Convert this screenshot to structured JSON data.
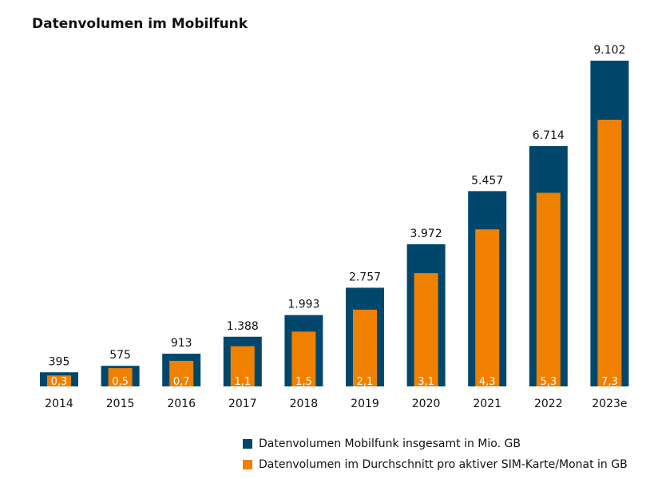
{
  "chart_data": {
    "type": "bar",
    "title": "Datenvolumen im Mobilfunk",
    "categories": [
      "2014",
      "2015",
      "2016",
      "2017",
      "2018",
      "2019",
      "2020",
      "2021",
      "2022",
      "2023e"
    ],
    "series": [
      {
        "name": "Datenvolumen Mobilfunk insgesamt in Mio. GB",
        "values": [
          395,
          575,
          913,
          1388,
          1993,
          2757,
          3972,
          5457,
          6714,
          9102
        ],
        "labels": [
          "395",
          "575",
          "913",
          "1.388",
          "1.993",
          "2.757",
          "3.972",
          "5.457",
          "6.714",
          "9.102"
        ],
        "color": "#00476b"
      },
      {
        "name": "Datenvolumen im Durchschnitt pro aktiver SIM-Karte/Monat in GB",
        "values": [
          0.3,
          0.5,
          0.7,
          1.1,
          1.5,
          2.1,
          3.1,
          4.3,
          5.3,
          7.3
        ],
        "labels": [
          "0,3",
          "0,5",
          "0,7",
          "1,1",
          "1,5",
          "2,1",
          "3,1",
          "4,3",
          "5,3",
          "7,3"
        ],
        "color": "#f08000"
      }
    ],
    "grid": false,
    "legend": "bottom"
  }
}
